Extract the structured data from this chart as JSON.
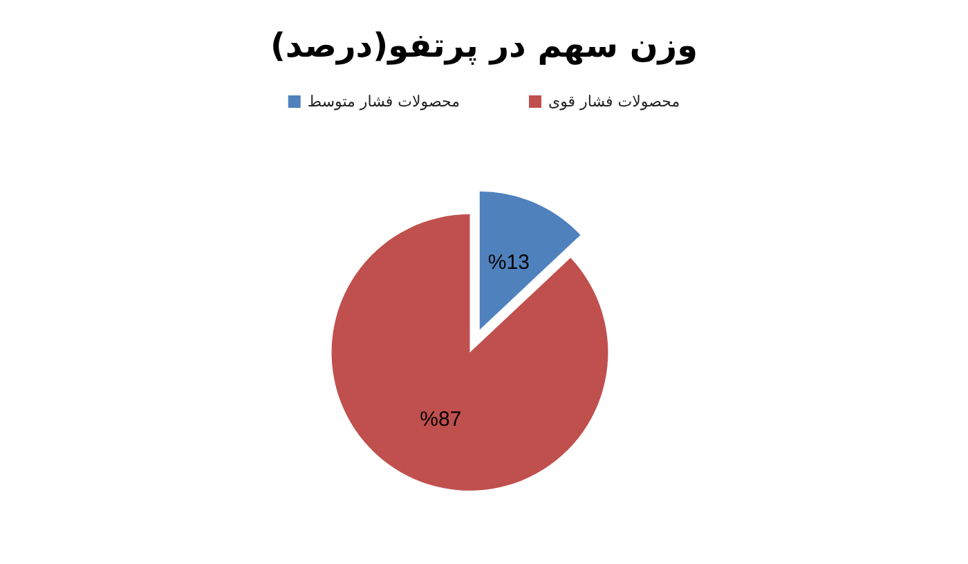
{
  "chart_data": {
    "type": "pie",
    "title": "وزن سهم در پرتفو(درصد)",
    "categories": [
      "محصولات فشار متوسط",
      "محصولات فشار قوی"
    ],
    "values": [
      13,
      87
    ],
    "value_labels": [
      "%13",
      "%87"
    ],
    "colors": [
      "#4f81bd",
      "#c0504d"
    ],
    "legend": "top"
  }
}
